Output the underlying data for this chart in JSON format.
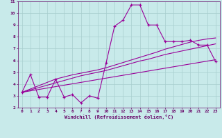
{
  "x_values": [
    0,
    1,
    2,
    3,
    4,
    5,
    6,
    7,
    8,
    9,
    10,
    11,
    12,
    13,
    14,
    15,
    16,
    17,
    18,
    19,
    20,
    21,
    22,
    23
  ],
  "y_main": [
    3.3,
    4.8,
    2.9,
    2.9,
    4.4,
    2.9,
    3.1,
    2.4,
    3.0,
    2.8,
    5.8,
    8.9,
    9.4,
    10.7,
    10.7,
    9.0,
    9.0,
    7.6,
    7.6,
    7.6,
    7.7,
    7.3,
    7.3,
    5.9
  ],
  "trend_low": [
    3.3,
    3.42,
    3.54,
    3.66,
    3.78,
    3.9,
    4.02,
    4.14,
    4.26,
    4.38,
    4.5,
    4.62,
    4.74,
    4.86,
    4.98,
    5.1,
    5.22,
    5.34,
    5.46,
    5.58,
    5.7,
    5.82,
    5.94,
    6.06
  ],
  "trend_mid": [
    3.3,
    3.5,
    3.7,
    3.9,
    4.1,
    4.3,
    4.5,
    4.7,
    4.85,
    5.0,
    5.15,
    5.35,
    5.55,
    5.75,
    5.95,
    6.1,
    6.3,
    6.5,
    6.65,
    6.8,
    6.95,
    7.1,
    7.25,
    7.4
  ],
  "trend_high": [
    3.3,
    3.58,
    3.86,
    4.14,
    4.42,
    4.6,
    4.78,
    4.92,
    5.06,
    5.2,
    5.38,
    5.6,
    5.82,
    6.04,
    6.26,
    6.48,
    6.7,
    6.95,
    7.15,
    7.35,
    7.55,
    7.7,
    7.82,
    7.9
  ],
  "line_color": "#990099",
  "bg_color": "#c8eaea",
  "grid_color": "#a8cece",
  "xlabel": "Windchill (Refroidissement éolien,°C)",
  "ylim": [
    2,
    11
  ],
  "xlim": [
    -0.5,
    23.5
  ],
  "yticks": [
    2,
    3,
    4,
    5,
    6,
    7,
    8,
    9,
    10,
    11
  ],
  "xticks": [
    0,
    1,
    2,
    3,
    4,
    5,
    6,
    7,
    8,
    9,
    10,
    11,
    12,
    13,
    14,
    15,
    16,
    17,
    18,
    19,
    20,
    21,
    22,
    23
  ],
  "font_color": "#660066",
  "tick_fontsize": 4.5,
  "xlabel_fontsize": 5.0,
  "line_width": 0.8,
  "marker_size": 3.5
}
